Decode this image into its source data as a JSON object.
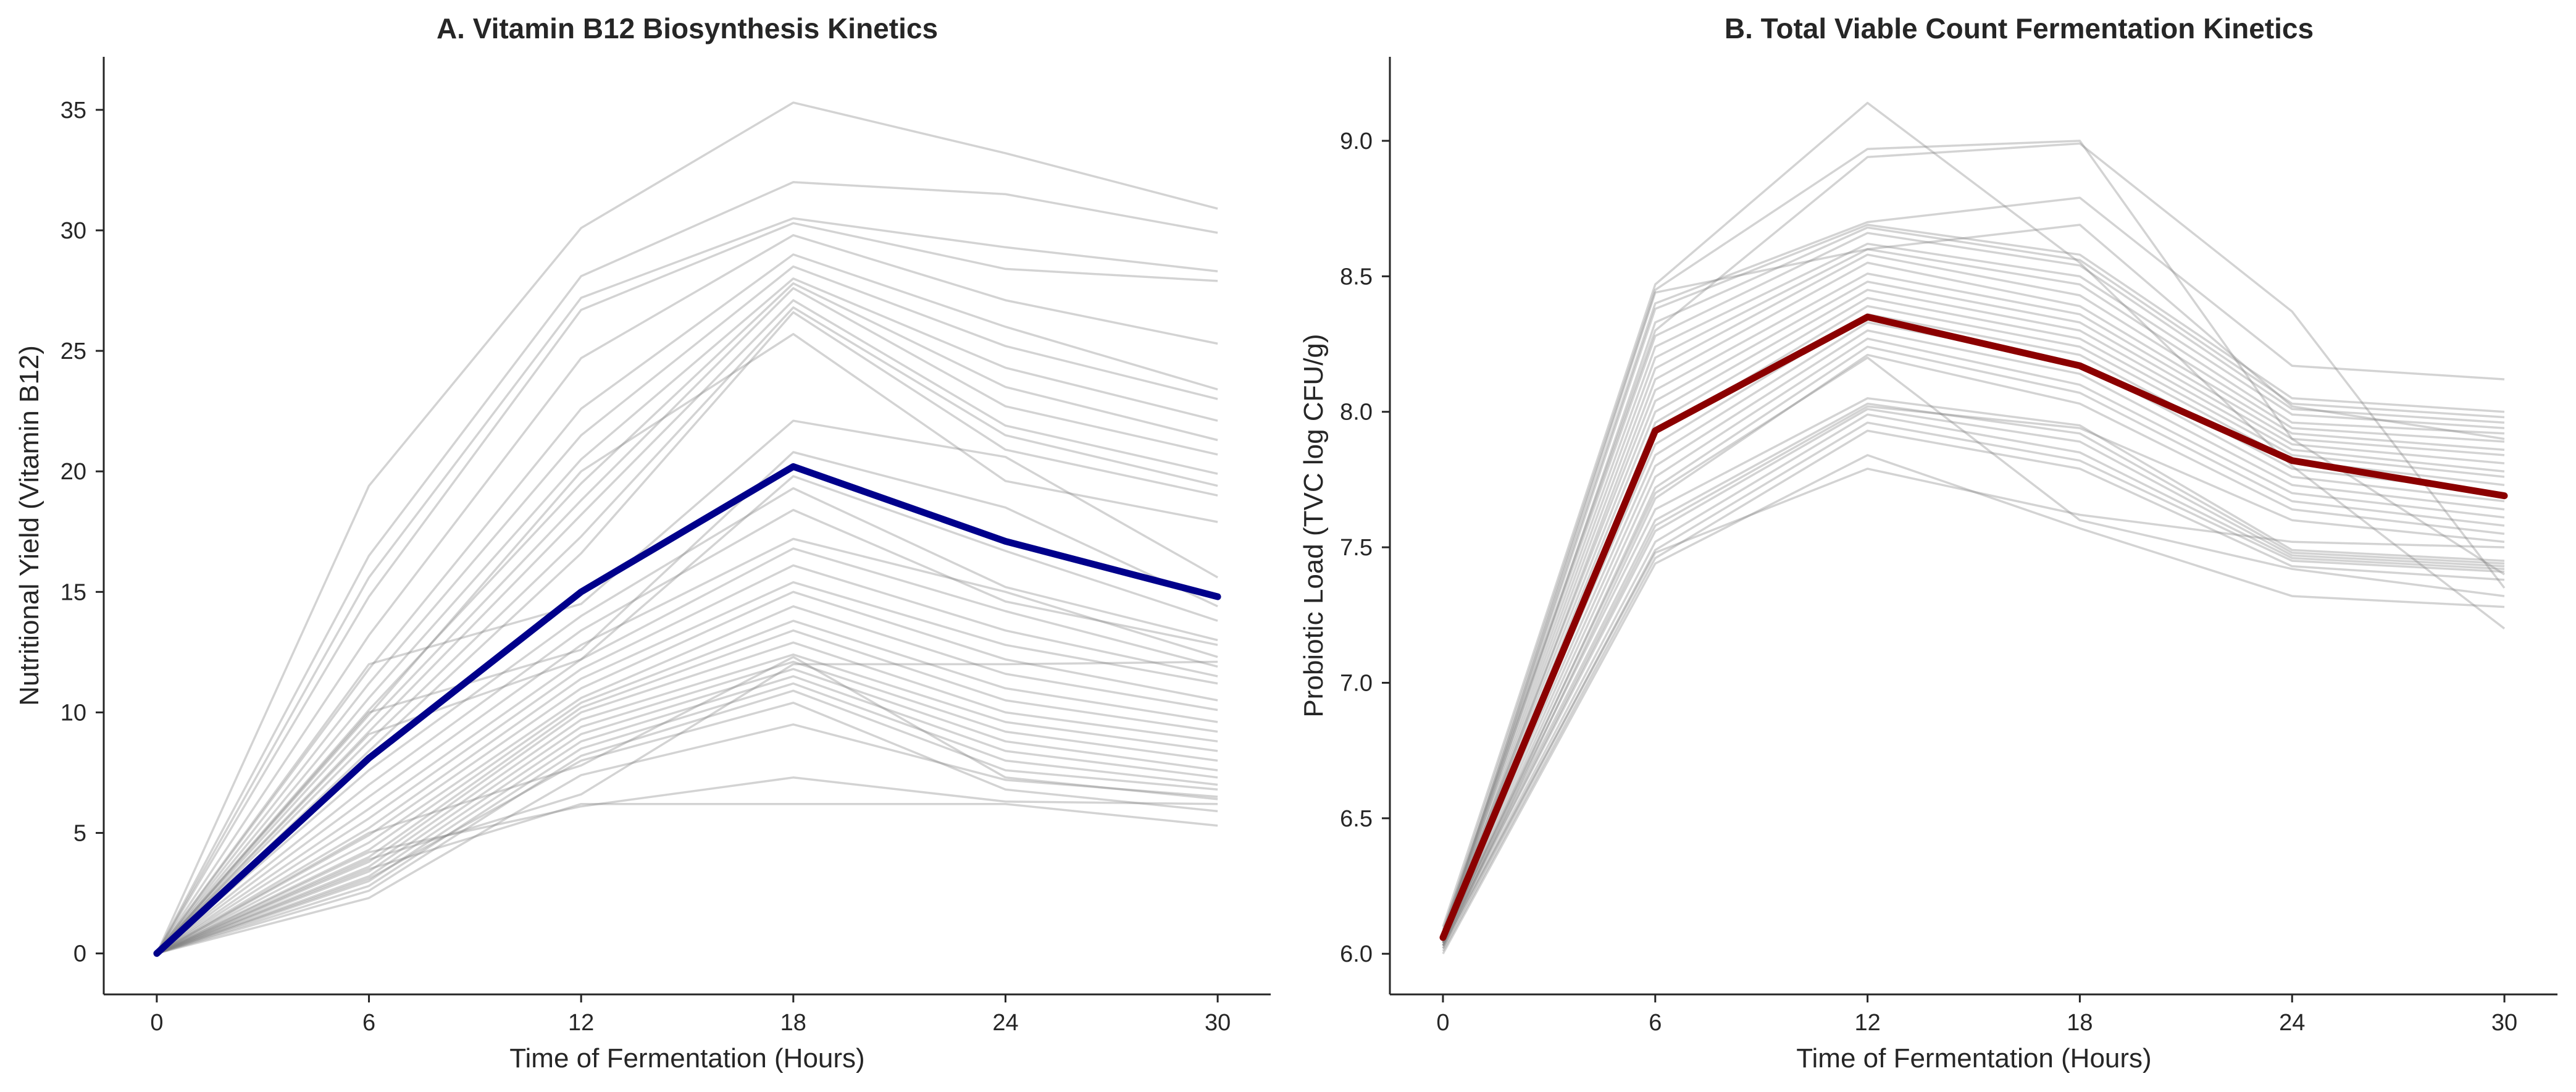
{
  "chart_data": [
    {
      "type": "line",
      "title": "A. Vitamin B12 Biosynthesis Kinetics",
      "xlabel": "Time of Fermentation (Hours)",
      "ylabel": "Nutritional Yield (Vitamin B12)",
      "x": [
        0,
        6,
        12,
        18,
        24,
        30
      ],
      "xlim": [
        -1.5,
        31.5
      ],
      "ylim": [
        -1.7,
        37.2
      ],
      "yticks": [
        0,
        5,
        10,
        15,
        20,
        25,
        30,
        35
      ],
      "grid": false,
      "mean_color": "#00008b",
      "mean": [
        0,
        8.1,
        15.0,
        20.2,
        17.1,
        14.8
      ],
      "series": [
        {
          "values": [
            0,
            19.4,
            30.1,
            35.3,
            33.2,
            30.9
          ]
        },
        {
          "values": [
            0,
            16.5,
            28.1,
            32.0,
            31.5,
            29.9
          ]
        },
        {
          "values": [
            0,
            15.6,
            27.2,
            30.5,
            29.3,
            28.3
          ]
        },
        {
          "values": [
            0,
            14.8,
            26.7,
            30.3,
            28.4,
            27.9
          ]
        },
        {
          "values": [
            0,
            13.2,
            24.7,
            29.8,
            27.1,
            25.3
          ]
        },
        {
          "values": [
            0,
            11.8,
            22.6,
            29.0,
            26.0,
            23.4
          ]
        },
        {
          "values": [
            0,
            11.2,
            21.5,
            28.5,
            25.2,
            23.0
          ]
        },
        {
          "values": [
            0,
            10.6,
            20.5,
            28.0,
            24.3,
            22.1
          ]
        },
        {
          "values": [
            0,
            10.1,
            19.5,
            27.8,
            23.5,
            21.3
          ]
        },
        {
          "values": [
            0,
            9.6,
            18.8,
            27.6,
            22.7,
            20.7
          ]
        },
        {
          "values": [
            0,
            9.2,
            18.2,
            27.1,
            21.9,
            19.9
          ]
        },
        {
          "values": [
            0,
            8.8,
            17.3,
            26.8,
            21.5,
            19.4
          ]
        },
        {
          "values": [
            0,
            8.4,
            16.6,
            26.6,
            20.9,
            19.0
          ]
        },
        {
          "values": [
            0,
            9.9,
            20.0,
            25.7,
            19.6,
            17.9
          ]
        },
        {
          "values": [
            0,
            12.0,
            14.5,
            22.1,
            20.6,
            15.6
          ]
        },
        {
          "values": [
            0,
            10.0,
            12.6,
            20.8,
            18.5,
            14.4
          ]
        },
        {
          "values": [
            0,
            9.1,
            12.2,
            19.8,
            16.7,
            13.8
          ]
        },
        {
          "values": [
            0,
            7.6,
            14.0,
            19.3,
            15.2,
            13.0
          ]
        },
        {
          "values": [
            0,
            7.0,
            13.4,
            18.4,
            14.6,
            12.8
          ]
        },
        {
          "values": [
            0,
            6.5,
            12.8,
            17.2,
            15.0,
            12.3
          ]
        },
        {
          "values": [
            0,
            6.0,
            12.2,
            16.8,
            14.2,
            11.9
          ]
        },
        {
          "values": [
            0,
            5.6,
            11.8,
            16.1,
            13.4,
            11.5
          ]
        },
        {
          "values": [
            0,
            5.2,
            11.4,
            15.4,
            12.8,
            11.2
          ]
        },
        {
          "values": [
            0,
            4.9,
            11.0,
            15.0,
            12.2,
            10.5
          ]
        },
        {
          "values": [
            0,
            4.6,
            10.6,
            14.4,
            11.6,
            10.1
          ]
        },
        {
          "values": [
            0,
            4.3,
            10.4,
            13.8,
            11.0,
            9.6
          ]
        },
        {
          "values": [
            0,
            4.0,
            10.2,
            13.4,
            10.5,
            9.2
          ]
        },
        {
          "values": [
            0,
            3.8,
            10.0,
            12.9,
            10.0,
            8.8
          ]
        },
        {
          "values": [
            0,
            3.6,
            9.7,
            12.4,
            9.6,
            8.4
          ]
        },
        {
          "values": [
            0,
            3.4,
            9.4,
            12.1,
            9.2,
            8.0
          ]
        },
        {
          "values": [
            0,
            3.2,
            9.1,
            11.8,
            8.8,
            7.6
          ]
        },
        {
          "values": [
            0,
            3.0,
            8.8,
            11.5,
            8.4,
            7.3
          ]
        },
        {
          "values": [
            0,
            2.8,
            8.5,
            11.2,
            8.0,
            7.0
          ]
        },
        {
          "values": [
            0,
            2.6,
            8.2,
            10.9,
            7.6,
            6.8
          ]
        },
        {
          "values": [
            0,
            2.3,
            7.4,
            9.5,
            7.2,
            6.5
          ]
        },
        {
          "values": [
            0,
            4.2,
            6.1,
            7.3,
            6.3,
            6.2
          ]
        },
        {
          "values": [
            0,
            3.9,
            6.6,
            12.0,
            12.0,
            12.1
          ]
        },
        {
          "values": [
            0,
            5.0,
            7.8,
            12.3,
            7.3,
            6.4
          ]
        },
        {
          "values": [
            0,
            3.5,
            6.2,
            6.2,
            6.2,
            5.3
          ]
        },
        {
          "values": [
            0,
            3.1,
            8.0,
            10.4,
            6.8,
            5.9
          ]
        }
      ]
    },
    {
      "type": "line",
      "title": "B. Total Viable Count Fermentation Kinetics",
      "xlabel": "Time of Fermentation (Hours)",
      "ylabel": "Probiotic Load (TVC log CFU/g)",
      "x": [
        0,
        6,
        12,
        18,
        24,
        30
      ],
      "xlim": [
        -1.5,
        31.5
      ],
      "ylim": [
        5.85,
        9.31
      ],
      "yticks": [
        6.0,
        6.5,
        7.0,
        7.5,
        8.0,
        8.5,
        9.0
      ],
      "grid": false,
      "mean_color": "#8b0000",
      "mean": [
        6.06,
        7.93,
        8.35,
        8.17,
        7.82,
        7.69
      ],
      "series": [
        {
          "values": [
            6.1,
            8.47,
            9.14,
            8.55,
            7.8,
            7.2
          ]
        },
        {
          "values": [
            6.08,
            8.45,
            8.97,
            9.0,
            7.9,
            7.4
          ]
        },
        {
          "values": [
            6.09,
            8.3,
            8.94,
            8.99,
            8.37,
            7.35
          ]
        },
        {
          "values": [
            6.07,
            8.4,
            8.7,
            8.79,
            8.17,
            8.12
          ]
        },
        {
          "values": [
            6.06,
            8.38,
            8.69,
            8.58,
            8.05,
            8.0
          ]
        },
        {
          "values": [
            6.05,
            8.33,
            8.68,
            8.56,
            8.03,
            7.98
          ]
        },
        {
          "values": [
            6.08,
            8.28,
            8.66,
            8.54,
            8.01,
            7.96
          ]
        },
        {
          "values": [
            6.07,
            8.24,
            8.62,
            8.5,
            7.99,
            7.94
          ]
        },
        {
          "values": [
            6.06,
            8.2,
            8.6,
            8.47,
            7.96,
            7.92
          ]
        },
        {
          "values": [
            6.05,
            8.16,
            8.58,
            8.43,
            7.94,
            7.89
          ]
        },
        {
          "values": [
            6.04,
            8.12,
            8.55,
            8.39,
            7.92,
            7.86
          ]
        },
        {
          "values": [
            6.07,
            8.08,
            8.51,
            8.36,
            7.9,
            7.84
          ]
        },
        {
          "values": [
            6.06,
            8.04,
            8.48,
            8.33,
            7.88,
            7.81
          ]
        },
        {
          "values": [
            6.05,
            8.0,
            8.45,
            8.3,
            7.86,
            7.78
          ]
        },
        {
          "values": [
            6.04,
            7.96,
            8.42,
            8.27,
            7.84,
            7.76
          ]
        },
        {
          "values": [
            6.03,
            7.92,
            8.39,
            8.24,
            7.82,
            7.73
          ]
        },
        {
          "values": [
            6.07,
            7.88,
            8.36,
            8.21,
            7.79,
            7.7
          ]
        },
        {
          "values": [
            6.06,
            7.84,
            8.33,
            8.18,
            7.76,
            7.67
          ]
        },
        {
          "values": [
            6.05,
            7.8,
            8.3,
            8.14,
            7.73,
            7.64
          ]
        },
        {
          "values": [
            6.04,
            7.76,
            8.27,
            8.1,
            7.7,
            7.61
          ]
        },
        {
          "values": [
            6.03,
            7.72,
            8.24,
            8.07,
            7.67,
            7.58
          ]
        },
        {
          "values": [
            6.02,
            7.68,
            8.21,
            8.03,
            7.64,
            7.55
          ]
        },
        {
          "values": [
            6.06,
            7.64,
            8.05,
            7.95,
            7.49,
            7.45
          ]
        },
        {
          "values": [
            6.05,
            7.6,
            8.03,
            7.92,
            7.48,
            7.44
          ]
        },
        {
          "values": [
            6.04,
            7.56,
            8.01,
            7.89,
            7.47,
            7.43
          ]
        },
        {
          "values": [
            6.03,
            7.52,
            7.99,
            7.85,
            7.46,
            7.42
          ]
        },
        {
          "values": [
            6.02,
            7.49,
            7.96,
            7.82,
            7.45,
            7.41
          ]
        },
        {
          "values": [
            6.01,
            7.46,
            7.93,
            7.79,
            7.43,
            7.38
          ]
        },
        {
          "values": [
            6.0,
            7.44,
            7.84,
            7.57,
            7.32,
            7.28
          ]
        },
        {
          "values": [
            6.03,
            7.48,
            7.79,
            7.62,
            7.52,
            7.5
          ]
        },
        {
          "values": [
            6.04,
            7.58,
            8.02,
            7.94,
            7.6,
            7.52
          ]
        },
        {
          "values": [
            6.06,
            8.44,
            8.6,
            8.69,
            8.02,
            7.9
          ]
        },
        {
          "values": [
            6.05,
            7.7,
            8.2,
            7.6,
            7.42,
            7.32
          ]
        }
      ]
    }
  ]
}
